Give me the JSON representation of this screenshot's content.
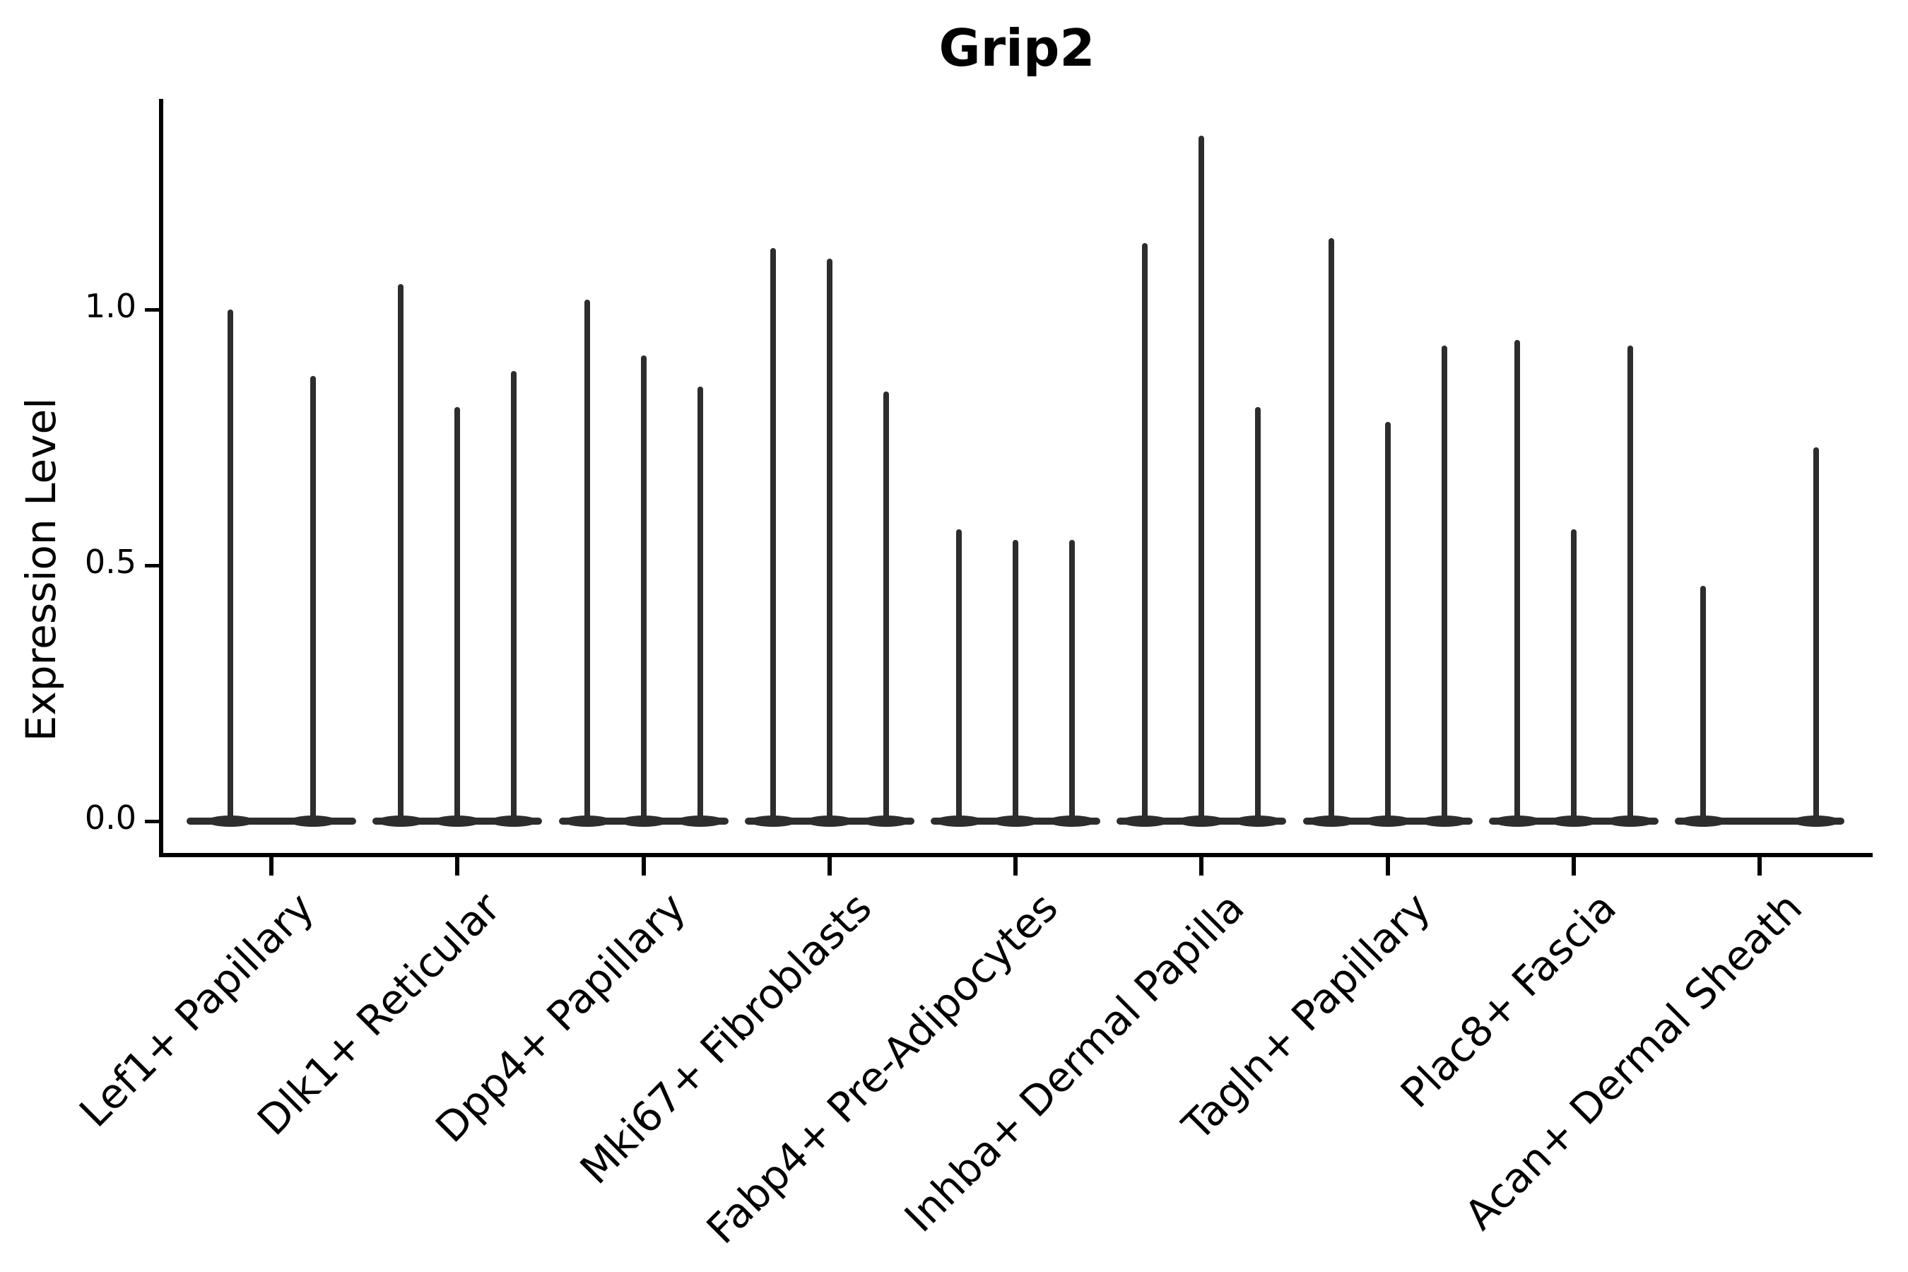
{
  "title": "Grip2",
  "axes": {
    "y_label": "Expression Level",
    "y_tick_labels": [
      "0.0",
      "0.5",
      "1.0"
    ],
    "x_label": ""
  },
  "colors": {
    "ink": "#2d2d2d",
    "spine": "#000000",
    "text": "#000000",
    "background": "#ffffff"
  },
  "chart_data": {
    "type": "violin",
    "title": "Grip2",
    "xlabel": "",
    "ylabel": "Expression Level",
    "ylim": [
      -0.07,
      1.41
    ],
    "y_ticks": [
      0.0,
      0.5,
      1.0
    ],
    "grid": false,
    "legend": null,
    "description": "Needle-thin violins: wide flat base at expression 0 with a thin spike up to the max expression value per violin; 2-3 violins per cell-type category",
    "categories": [
      "Lef1+ Papillary",
      "Dlk1+ Reticular",
      "Dpp4+ Papillary",
      "Mki67+ Fibroblasts",
      "Fabp4+ Pre-Adipocytes",
      "Inhba+ Dermal Papilla",
      "Tagln+ Papillary",
      "Plac8+ Fascia",
      "Acan+ Dermal Sheath"
    ],
    "violins": [
      {
        "category": "Lef1+ Papillary",
        "spikes": [
          {
            "dx": -58,
            "max": 1.0
          },
          {
            "dx": 59,
            "max": 0.87
          }
        ]
      },
      {
        "category": "Dlk1+ Reticular",
        "spikes": [
          {
            "dx": -80,
            "max": 1.05
          },
          {
            "dx": 0,
            "max": 0.81
          },
          {
            "dx": 80,
            "max": 0.88
          }
        ]
      },
      {
        "category": "Dpp4+ Papillary",
        "spikes": [
          {
            "dx": -80,
            "max": 1.02
          },
          {
            "dx": 0,
            "max": 0.91
          },
          {
            "dx": 80,
            "max": 0.85
          }
        ]
      },
      {
        "category": "Mki67+ Fibroblasts",
        "spikes": [
          {
            "dx": -80,
            "max": 1.12
          },
          {
            "dx": 0,
            "max": 1.1
          },
          {
            "dx": 80,
            "max": 0.84
          }
        ]
      },
      {
        "category": "Fabp4+ Pre-Adipocytes",
        "spikes": [
          {
            "dx": -80,
            "max": 0.57
          },
          {
            "dx": 0,
            "max": 0.55
          },
          {
            "dx": 80,
            "max": 0.55
          }
        ]
      },
      {
        "category": "Inhba+ Dermal Papilla",
        "spikes": [
          {
            "dx": -80,
            "max": 1.13
          },
          {
            "dx": 0,
            "max": 1.34
          },
          {
            "dx": 80,
            "max": 0.81
          }
        ]
      },
      {
        "category": "Tagln+ Papillary",
        "spikes": [
          {
            "dx": -80,
            "max": 1.14
          },
          {
            "dx": 0,
            "max": 0.78
          },
          {
            "dx": 80,
            "max": 0.93
          }
        ]
      },
      {
        "category": "Plac8+ Fascia",
        "spikes": [
          {
            "dx": -80,
            "max": 0.94
          },
          {
            "dx": 0,
            "max": 0.57
          },
          {
            "dx": 80,
            "max": 0.93
          }
        ]
      },
      {
        "category": "Acan+ Dermal Sheath",
        "spikes": [
          {
            "dx": -80,
            "max": 0.46
          },
          {
            "dx": 80,
            "max": 0.73
          }
        ]
      }
    ]
  }
}
